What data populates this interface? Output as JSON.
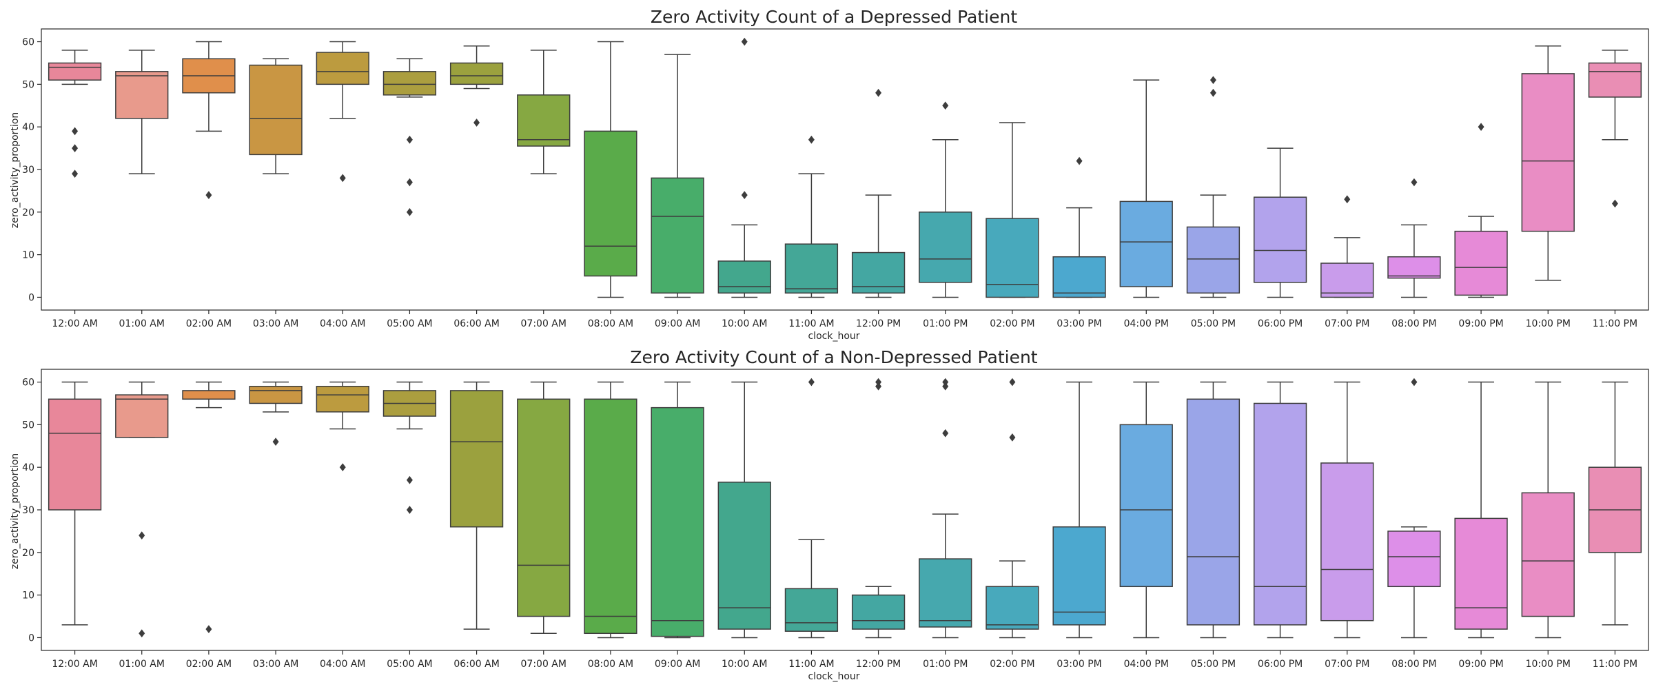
{
  "chart_data": [
    {
      "type": "box",
      "title": "Zero Activity Count of a Depressed Patient",
      "xlabel": "clock_hour",
      "ylabel": "zero_activity_proportion",
      "ylim": [
        -3,
        63
      ],
      "yticks": [
        0,
        10,
        20,
        30,
        40,
        50,
        60
      ],
      "categories": [
        "12:00 AM",
        "01:00 AM",
        "02:00 AM",
        "03:00 AM",
        "04:00 AM",
        "05:00 AM",
        "06:00 AM",
        "07:00 AM",
        "08:00 AM",
        "09:00 AM",
        "10:00 AM",
        "11:00 AM",
        "12:00 PM",
        "01:00 PM",
        "02:00 PM",
        "03:00 PM",
        "04:00 PM",
        "05:00 PM",
        "06:00 PM",
        "07:00 PM",
        "08:00 PM",
        "09:00 PM",
        "10:00 PM",
        "11:00 PM"
      ],
      "boxes": [
        {
          "min": 50,
          "q1": 51,
          "median": 54,
          "q3": 55,
          "max": 58,
          "outliers": [
            39,
            35,
            29
          ]
        },
        {
          "min": 29,
          "q1": 42,
          "median": 52,
          "q3": 53,
          "max": 58,
          "outliers": []
        },
        {
          "min": 39,
          "q1": 48,
          "median": 52,
          "q3": 56,
          "max": 60,
          "outliers": [
            24
          ]
        },
        {
          "min": 29,
          "q1": 33.5,
          "median": 42,
          "q3": 54.5,
          "max": 56,
          "outliers": []
        },
        {
          "min": 42,
          "q1": 50,
          "median": 53,
          "q3": 57.5,
          "max": 60,
          "outliers": [
            28
          ]
        },
        {
          "min": 47,
          "q1": 47.5,
          "median": 50,
          "q3": 53,
          "max": 56,
          "outliers": [
            37,
            27,
            20
          ]
        },
        {
          "min": 49,
          "q1": 50,
          "median": 52,
          "q3": 55,
          "max": 59,
          "outliers": [
            41
          ]
        },
        {
          "min": 29,
          "q1": 35.5,
          "median": 37,
          "q3": 47.5,
          "max": 58,
          "outliers": []
        },
        {
          "min": 0,
          "q1": 5,
          "median": 12,
          "q3": 39,
          "max": 60,
          "outliers": []
        },
        {
          "min": 0,
          "q1": 1,
          "median": 19,
          "q3": 28,
          "max": 57,
          "outliers": []
        },
        {
          "min": 0,
          "q1": 1,
          "median": 2.5,
          "q3": 8.5,
          "max": 17,
          "outliers": [
            24,
            60
          ]
        },
        {
          "min": 0,
          "q1": 1,
          "median": 2,
          "q3": 12.5,
          "max": 29,
          "outliers": [
            37
          ]
        },
        {
          "min": 0,
          "q1": 1,
          "median": 2.5,
          "q3": 10.5,
          "max": 24,
          "outliers": [
            48
          ]
        },
        {
          "min": 0,
          "q1": 3.5,
          "median": 9,
          "q3": 20,
          "max": 37,
          "outliers": [
            45
          ]
        },
        {
          "min": 0,
          "q1": 0,
          "median": 3,
          "q3": 18.5,
          "max": 41,
          "outliers": []
        },
        {
          "min": 0,
          "q1": 0,
          "median": 1,
          "q3": 9.5,
          "max": 21,
          "outliers": [
            32
          ]
        },
        {
          "min": 0,
          "q1": 2.5,
          "median": 13,
          "q3": 22.5,
          "max": 51,
          "outliers": []
        },
        {
          "min": 0,
          "q1": 1,
          "median": 9,
          "q3": 16.5,
          "max": 24,
          "outliers": [
            48,
            51
          ]
        },
        {
          "min": 0,
          "q1": 3.5,
          "median": 11,
          "q3": 23.5,
          "max": 35,
          "outliers": []
        },
        {
          "min": 0,
          "q1": 0,
          "median": 1,
          "q3": 8,
          "max": 14,
          "outliers": [
            23
          ]
        },
        {
          "min": 0,
          "q1": 4.5,
          "median": 5,
          "q3": 9.5,
          "max": 17,
          "outliers": [
            27
          ]
        },
        {
          "min": 0,
          "q1": 0.5,
          "median": 7,
          "q3": 15.5,
          "max": 19,
          "outliers": [
            40
          ]
        },
        {
          "min": 4,
          "q1": 15.5,
          "median": 32,
          "q3": 52.5,
          "max": 59,
          "outliers": []
        },
        {
          "min": 37,
          "q1": 47,
          "median": 53,
          "q3": 55,
          "max": 58,
          "outliers": [
            22
          ]
        }
      ]
    },
    {
      "type": "box",
      "title": "Zero Activity Count of a Non-Depressed Patient",
      "xlabel": "clock_hour",
      "ylabel": "zero_activity_proportion",
      "ylim": [
        -3,
        63
      ],
      "yticks": [
        0,
        10,
        20,
        30,
        40,
        50,
        60
      ],
      "categories": [
        "12:00 AM",
        "01:00 AM",
        "02:00 AM",
        "03:00 AM",
        "04:00 AM",
        "05:00 AM",
        "06:00 AM",
        "07:00 AM",
        "08:00 AM",
        "09:00 AM",
        "10:00 AM",
        "11:00 AM",
        "12:00 PM",
        "01:00 PM",
        "02:00 PM",
        "03:00 PM",
        "04:00 PM",
        "05:00 PM",
        "06:00 PM",
        "07:00 PM",
        "08:00 PM",
        "09:00 PM",
        "10:00 PM",
        "11:00 PM"
      ],
      "boxes": [
        {
          "min": 3,
          "q1": 30,
          "median": 48,
          "q3": 56,
          "max": 60,
          "outliers": []
        },
        {
          "min": 47,
          "q1": 47,
          "median": 56,
          "q3": 57,
          "max": 60,
          "outliers": [
            24,
            1
          ]
        },
        {
          "min": 54,
          "q1": 56,
          "median": 56,
          "q3": 58,
          "max": 60,
          "outliers": [
            2
          ]
        },
        {
          "min": 53,
          "q1": 55,
          "median": 58,
          "q3": 59,
          "max": 60,
          "outliers": [
            46
          ]
        },
        {
          "min": 49,
          "q1": 53,
          "median": 57,
          "q3": 59,
          "max": 60,
          "outliers": [
            40
          ]
        },
        {
          "min": 49,
          "q1": 52,
          "median": 55,
          "q3": 58,
          "max": 60,
          "outliers": [
            37,
            30
          ]
        },
        {
          "min": 2,
          "q1": 26,
          "median": 46,
          "q3": 58,
          "max": 60,
          "outliers": []
        },
        {
          "min": 1,
          "q1": 5,
          "median": 17,
          "q3": 56,
          "max": 60,
          "outliers": []
        },
        {
          "min": 0,
          "q1": 1,
          "median": 5,
          "q3": 56,
          "max": 60,
          "outliers": []
        },
        {
          "min": 0,
          "q1": 0.3,
          "median": 4,
          "q3": 54,
          "max": 60,
          "outliers": []
        },
        {
          "min": 0,
          "q1": 2,
          "median": 7,
          "q3": 36.5,
          "max": 60,
          "outliers": []
        },
        {
          "min": 0,
          "q1": 1.5,
          "median": 3.5,
          "q3": 11.5,
          "max": 23,
          "outliers": [
            60
          ]
        },
        {
          "min": 0,
          "q1": 2,
          "median": 4,
          "q3": 10,
          "max": 12,
          "outliers": [
            59,
            60
          ]
        },
        {
          "min": 0,
          "q1": 2.5,
          "median": 4,
          "q3": 18.5,
          "max": 29,
          "outliers": [
            48,
            59,
            60
          ]
        },
        {
          "min": 0,
          "q1": 2,
          "median": 3,
          "q3": 12,
          "max": 18,
          "outliers": [
            47,
            60
          ]
        },
        {
          "min": 0,
          "q1": 3,
          "median": 6,
          "q3": 26,
          "max": 60,
          "outliers": []
        },
        {
          "min": 0,
          "q1": 12,
          "median": 30,
          "q3": 50,
          "max": 60,
          "outliers": []
        },
        {
          "min": 0,
          "q1": 3,
          "median": 19,
          "q3": 56,
          "max": 60,
          "outliers": []
        },
        {
          "min": 0,
          "q1": 3,
          "median": 12,
          "q3": 55,
          "max": 60,
          "outliers": []
        },
        {
          "min": 0,
          "q1": 4,
          "median": 16,
          "q3": 41,
          "max": 60,
          "outliers": []
        },
        {
          "min": 0,
          "q1": 12,
          "median": 19,
          "q3": 25,
          "max": 26,
          "outliers": [
            60
          ]
        },
        {
          "min": 0,
          "q1": 2,
          "median": 7,
          "q3": 28,
          "max": 60,
          "outliers": []
        },
        {
          "min": 0,
          "q1": 5,
          "median": 18,
          "q3": 34,
          "max": 60,
          "outliers": []
        },
        {
          "min": 3,
          "q1": 20,
          "median": 30,
          "q3": 40,
          "max": 60,
          "outliers": []
        }
      ]
    }
  ],
  "colors": [
    "#e8879a",
    "#e89a8c",
    "#e08f4b",
    "#c99643",
    "#bc9b3f",
    "#ab9e3f",
    "#9ba13e",
    "#86a842",
    "#5aab4a",
    "#48ad6a",
    "#43a78d",
    "#44a797",
    "#44a7a2",
    "#46a8ae",
    "#48a9bc",
    "#4ca8cf",
    "#6aabe0",
    "#9aa5e8",
    "#b2a3ec",
    "#c99ceb",
    "#dd8fe8",
    "#e68ad7",
    "#e98dc4",
    "#e98eb4"
  ],
  "line_color": "#3d3d3d"
}
